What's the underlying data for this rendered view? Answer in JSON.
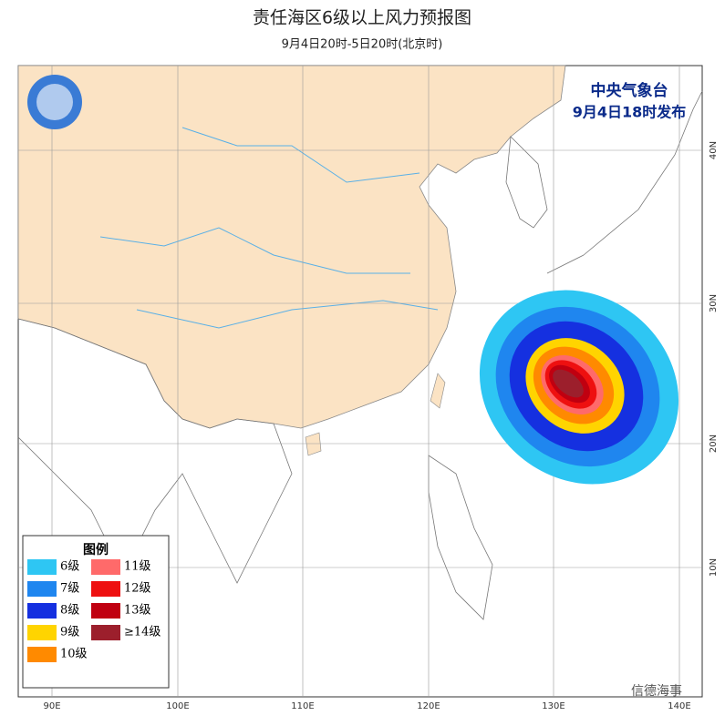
{
  "header": {
    "title": "责任海区6级以上风力预报图",
    "subtitle": "9月4日20时-5日20时(北京时)"
  },
  "issuer": {
    "agency": "中央气象台",
    "issued": "9月4日18时发布"
  },
  "axes": {
    "longitude": [
      "90E",
      "100E",
      "110E",
      "120E",
      "130E",
      "140E"
    ],
    "latitude": [
      "40N",
      "30N",
      "20N",
      "10N"
    ]
  },
  "legend": {
    "title": "图例",
    "items": [
      {
        "label": "6级",
        "color": "#2ec6f3"
      },
      {
        "label": "7级",
        "color": "#1f86ef"
      },
      {
        "label": "8级",
        "color": "#1530e0"
      },
      {
        "label": "9级",
        "color": "#ffd400"
      },
      {
        "label": "10级",
        "color": "#ff8a00"
      },
      {
        "label": "11级",
        "color": "#ff6a6a"
      },
      {
        "label": "12级",
        "color": "#ee1010"
      },
      {
        "label": "13级",
        "color": "#c00010"
      },
      {
        "label": "≥14级",
        "color": "#9c1f2c"
      }
    ]
  },
  "watermark": "信德海事"
}
